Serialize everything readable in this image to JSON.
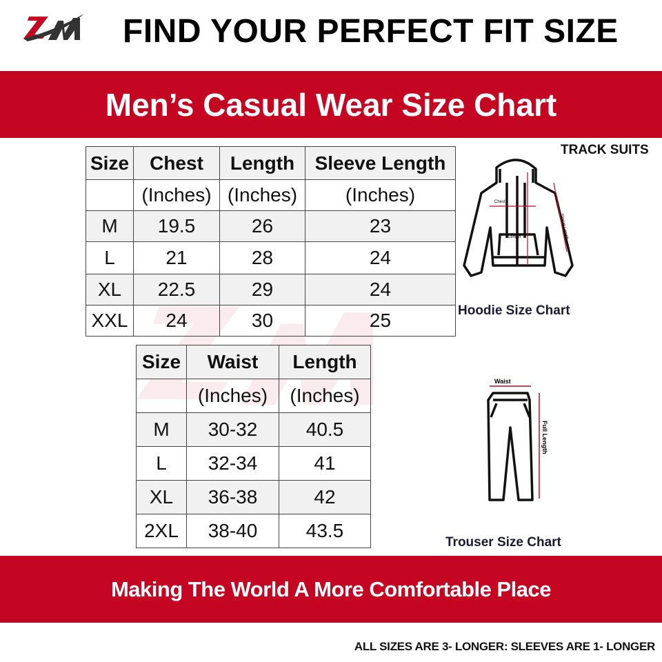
{
  "header": {
    "logo_text": "ZM",
    "title": "FIND YOUR PERFECT FIT SIZE"
  },
  "banner": {
    "title": "Men’s Casual Wear Size Chart"
  },
  "category": "TRACK SUITS",
  "hoodie": {
    "caption": "Hoodie Size Chart",
    "diagram_labels": [
      "Chest",
      "Length",
      "Sleeve Length"
    ],
    "headers": [
      "Size",
      "Chest",
      "Length",
      "Sleeve Length"
    ],
    "units": [
      "",
      "(Inches)",
      "(Inches)",
      "(Inches)"
    ],
    "rows": [
      [
        "M",
        "19.5",
        "26",
        "23"
      ],
      [
        "L",
        "21",
        "28",
        "24"
      ],
      [
        "XL",
        "22.5",
        "29",
        "24"
      ],
      [
        "XXL",
        "24",
        "30",
        "25"
      ]
    ]
  },
  "trouser": {
    "caption": "Trouser Size Chart",
    "diagram_labels": [
      "Waist",
      "Full Length"
    ],
    "headers": [
      "Size",
      "Waist",
      "Length"
    ],
    "units": [
      "",
      "(Inches)",
      "(Inches)"
    ],
    "rows": [
      [
        "M",
        "30-32",
        "40.5"
      ],
      [
        "L",
        "32-34",
        "41"
      ],
      [
        "XL",
        "36-38",
        "42"
      ],
      [
        "2XL",
        "38-40",
        "43.5"
      ]
    ]
  },
  "footer": {
    "slogan": "Making The World A More Comfortable Place",
    "note": "ALL SIZES ARE 3- LONGER: SLEEVES ARE 1- LONGER"
  },
  "colors": {
    "brand_red": "#c50623",
    "logo_dark": "#333333"
  }
}
